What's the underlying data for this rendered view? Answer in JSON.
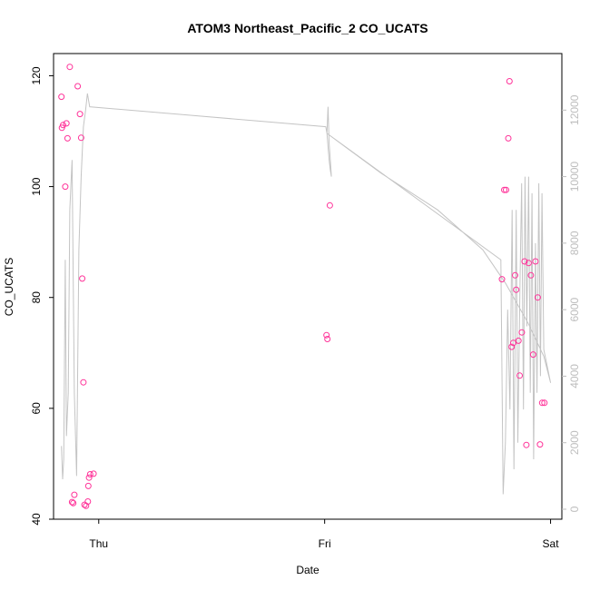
{
  "chart_data": {
    "type": "scatter",
    "title": "ATOM3 Northeast_Pacific_2 CO_UCATS",
    "xlabel": "Date",
    "ylabel": "CO_UCATS",
    "x_ticks": [
      {
        "label": "Thu",
        "value": 0
      },
      {
        "label": "Fri",
        "value": 1
      },
      {
        "label": "Sat",
        "value": 2
      }
    ],
    "xlim": [
      -0.2,
      2.05
    ],
    "ylim": [
      40,
      124
    ],
    "y_ticks": [
      40,
      60,
      80,
      100,
      120
    ],
    "y2lim": [
      -300,
      13700
    ],
    "y2_ticks": [
      0,
      2000,
      4000,
      6000,
      8000,
      10000,
      12000
    ],
    "colors": {
      "points": "#ff3399",
      "line": "#c4c4c4",
      "right_axis": "#bdbdbd"
    },
    "series": [
      {
        "type": "scatter",
        "axis": "left",
        "x": [
          -0.165,
          -0.163,
          -0.158,
          -0.148,
          -0.143,
          -0.138,
          -0.128,
          -0.118,
          -0.113,
          -0.108,
          -0.093,
          -0.083,
          -0.078,
          -0.073,
          -0.068,
          -0.063,
          -0.056,
          -0.048,
          -0.046,
          -0.043,
          -0.038,
          -0.023,
          1.008,
          1.012,
          1.023,
          1.785,
          1.795,
          1.803,
          1.813,
          1.818,
          1.828,
          1.835,
          1.843,
          1.848,
          1.858,
          1.863,
          1.873,
          1.885,
          1.893,
          1.903,
          1.913,
          1.923,
          1.933,
          1.943,
          1.953,
          1.963,
          1.973
        ],
        "values": [
          116.2,
          110.6,
          111.1,
          100.0,
          111.4,
          108.7,
          121.6,
          43.1,
          42.9,
          44.4,
          118.1,
          113.1,
          108.8,
          83.4,
          64.7,
          42.6,
          42.4,
          43.2,
          46.0,
          47.5,
          48.1,
          48.2,
          73.2,
          72.5,
          96.6,
          83.3,
          99.4,
          99.4,
          108.7,
          119.0,
          71.1,
          71.8,
          84.0,
          81.4,
          72.2,
          65.9,
          73.7,
          86.5,
          53.4,
          86.2,
          84.0,
          69.7,
          86.5,
          80.0,
          53.5,
          61.0,
          61.0
        ]
      },
      {
        "type": "line",
        "axis": "right",
        "x": [
          -0.165,
          -0.16,
          -0.155,
          -0.148,
          -0.143,
          -0.135,
          -0.128,
          -0.118,
          -0.108,
          -0.098,
          -0.088,
          -0.078,
          -0.068,
          -0.058,
          -0.05,
          -0.04,
          1.005,
          1.01,
          1.015,
          1.02,
          1.025,
          1.03,
          1.025,
          1.02,
          1.01,
          1.78,
          1.79,
          1.8,
          1.81,
          1.82,
          1.83,
          1.838,
          1.848,
          1.855,
          1.865,
          1.872,
          1.88,
          1.887,
          1.895,
          1.903,
          1.91,
          1.918,
          1.925,
          1.933,
          1.94,
          1.948,
          1.955,
          1.962,
          1.97,
          2.0,
          2.0,
          1.97,
          1.9,
          1.8,
          1.7,
          1.5,
          1.25,
          1.01
        ],
        "values": [
          1900,
          900,
          1500,
          7500,
          2200,
          3500,
          9000,
          10500,
          3500,
          1000,
          7800,
          10000,
          11500,
          12000,
          12500,
          12100,
          11500,
          11300,
          12100,
          11000,
          10500,
          10000,
          10200,
          10500,
          11300,
          7500,
          450,
          2000,
          6000,
          3000,
          9000,
          1200,
          9000,
          2000,
          7000,
          9800,
          3000,
          10000,
          5500,
          10000,
          3500,
          9500,
          1500,
          8000,
          3500,
          9800,
          4000,
          9500,
          4800,
          3800,
          3800,
          4600,
          5600,
          6800,
          7800,
          9000,
          10100,
          11300
        ]
      }
    ]
  }
}
